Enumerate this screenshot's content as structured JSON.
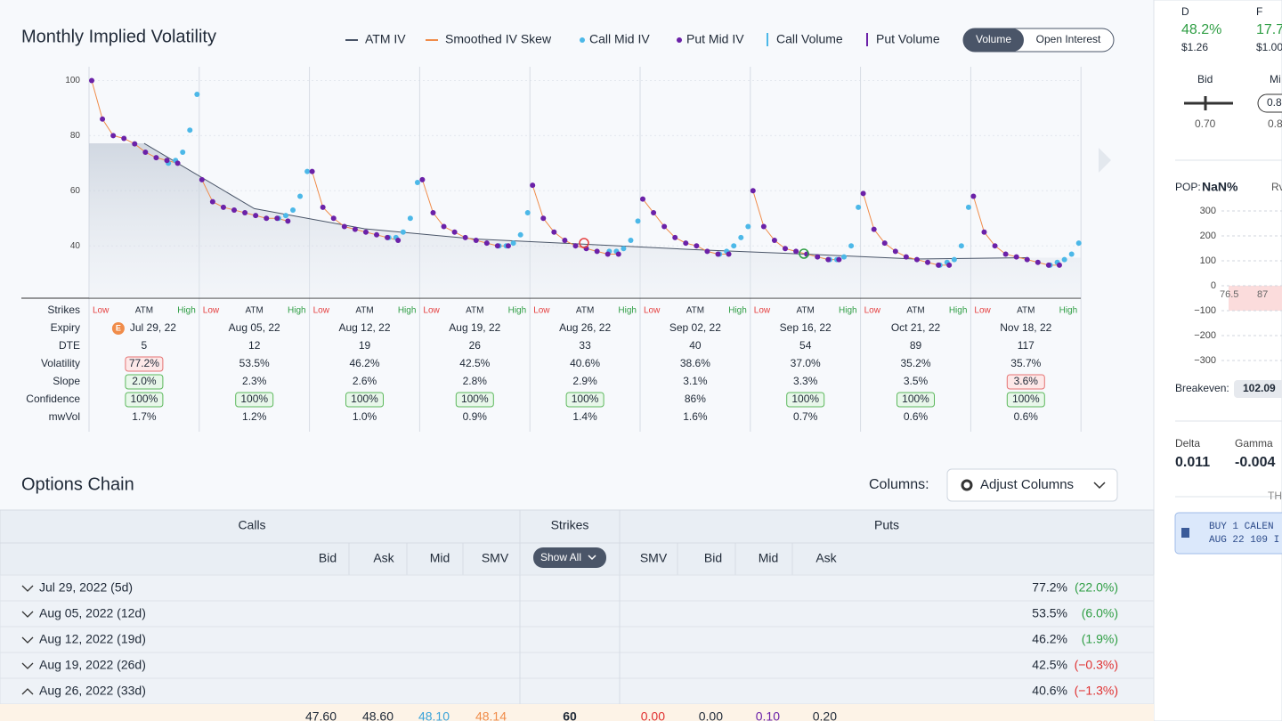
{
  "header": {
    "title": "Monthly Implied Volatility",
    "toggle": [
      "Volume",
      "Open Interest"
    ]
  },
  "chart_data": {
    "type": "scatter",
    "ylim": [
      21,
      105
    ],
    "yticks": [
      40,
      60,
      80,
      100
    ],
    "series": [
      {
        "name": "ATM IV",
        "color": "#4a5568",
        "values": [
          77.2,
          53.5,
          46.2,
          42.5,
          40.6,
          38.6,
          37.0,
          35.2,
          35.7
        ]
      },
      {
        "name": "Smoothed IV Skew",
        "color": "#f08c4a"
      },
      {
        "name": "Call Mid IV",
        "color": "#4cb8e8",
        "values": [
          [
            70,
            71,
            74,
            82,
            95
          ],
          [
            50,
            51,
            53,
            58,
            67
          ],
          [
            43,
            43,
            45,
            50,
            63
          ],
          [
            40,
            40,
            41,
            44,
            52
          ],
          [
            38,
            38,
            39,
            42,
            49
          ],
          [
            37,
            38,
            40,
            43,
            47
          ],
          [
            35,
            35,
            36,
            40,
            54
          ],
          [
            33,
            34,
            35,
            40,
            54
          ],
          [
            33,
            34,
            35,
            37,
            41
          ]
        ]
      },
      {
        "name": "Put Mid IV",
        "color": "#6b21a8",
        "values": [
          [
            100,
            86,
            80,
            79,
            77,
            74,
            72,
            71,
            70
          ],
          [
            64,
            56,
            54,
            53,
            52,
            51,
            50,
            50,
            49
          ],
          [
            67,
            54,
            50,
            47,
            46,
            45,
            44,
            43,
            42
          ],
          [
            64,
            52,
            47,
            45,
            43,
            42,
            41,
            40,
            40
          ],
          [
            62,
            50,
            45,
            42,
            40,
            39,
            38,
            37,
            37
          ],
          [
            57,
            52,
            47,
            43,
            41,
            40,
            38,
            37,
            37
          ],
          [
            60,
            47,
            42,
            39,
            38,
            37,
            36,
            35,
            35
          ],
          [
            59,
            46,
            41,
            38,
            36,
            35,
            34,
            33,
            33
          ],
          [
            58,
            45,
            40,
            37,
            36,
            35,
            34,
            33,
            33
          ]
        ]
      },
      {
        "name": "Call Volume",
        "color": "#4cb8e8"
      },
      {
        "name": "Put Volume",
        "color": "#6b21a8"
      }
    ]
  },
  "grid": {
    "row_labels": [
      "Strikes",
      "Expiry",
      "DTE",
      "Volatility",
      "Slope",
      "Confidence",
      "mwVol"
    ],
    "strike_labels": [
      "Low",
      "ATM",
      "High"
    ],
    "columns": [
      {
        "badge": "E",
        "expiry": "Jul 29, 22",
        "dte": "5",
        "volatility": "77.2%",
        "slope": "2.0%",
        "confidence": "100%",
        "mwvol": "1.7%",
        "boxes": {
          "volatility": "red",
          "slope": "green",
          "confidence": "green"
        }
      },
      {
        "expiry": "Aug 05, 22",
        "dte": "12",
        "volatility": "53.5%",
        "slope": "2.3%",
        "confidence": "100%",
        "mwvol": "1.2%",
        "boxes": {
          "confidence": "green"
        }
      },
      {
        "expiry": "Aug 12, 22",
        "dte": "19",
        "volatility": "46.2%",
        "slope": "2.6%",
        "confidence": "100%",
        "mwvol": "1.0%",
        "boxes": {
          "confidence": "green"
        }
      },
      {
        "expiry": "Aug 19, 22",
        "dte": "26",
        "volatility": "42.5%",
        "slope": "2.8%",
        "confidence": "100%",
        "mwvol": "0.9%",
        "boxes": {
          "confidence": "green"
        }
      },
      {
        "expiry": "Aug 26, 22",
        "dte": "33",
        "volatility": "40.6%",
        "slope": "2.9%",
        "confidence": "100%",
        "mwvol": "1.4%",
        "boxes": {
          "confidence": "green"
        }
      },
      {
        "expiry": "Sep 02, 22",
        "dte": "40",
        "volatility": "38.6%",
        "slope": "3.1%",
        "confidence": "86%",
        "mwvol": "1.6%",
        "boxes": {}
      },
      {
        "expiry": "Sep 16, 22",
        "dte": "54",
        "volatility": "37.0%",
        "slope": "3.3%",
        "confidence": "100%",
        "mwvol": "0.7%",
        "boxes": {
          "confidence": "green"
        }
      },
      {
        "expiry": "Oct 21, 22",
        "dte": "89",
        "volatility": "35.2%",
        "slope": "3.5%",
        "confidence": "100%",
        "mwvol": "0.6%",
        "boxes": {
          "confidence": "green"
        }
      },
      {
        "expiry": "Nov 18, 22",
        "dte": "117",
        "volatility": "35.7%",
        "slope": "3.6%",
        "confidence": "100%",
        "mwvol": "0.6%",
        "boxes": {
          "slope": "red",
          "confidence": "green"
        }
      }
    ]
  },
  "chain": {
    "title": "Options Chain",
    "columns_label": "Columns:",
    "adjust": "Adjust Columns",
    "groups": [
      "Calls",
      "Strikes",
      "Puts"
    ],
    "call_headers": [
      "Bid",
      "Ask",
      "Mid",
      "SMV"
    ],
    "show_all": "Show All",
    "put_headers": [
      "SMV",
      "Bid",
      "Mid",
      "Ask"
    ],
    "rows": [
      {
        "expiry": "Jul 29, 2022 (5d)",
        "iv": "77.2%",
        "change": "(22.0%)"
      },
      {
        "expiry": "Aug 05, 2022 (12d)",
        "iv": "53.5%",
        "change": "(6.0%)"
      },
      {
        "expiry": "Aug 12, 2022 (19d)",
        "iv": "46.2%",
        "change": "(1.9%)"
      },
      {
        "expiry": "Aug 19, 2022 (26d)",
        "iv": "42.5%",
        "change": "(−0.3%)"
      },
      {
        "expiry": "Aug 26, 2022 (33d)",
        "iv": "40.6%",
        "change": "(−1.3%)",
        "expanded": true
      }
    ],
    "open_row": {
      "calls": [
        "47.60",
        "48.60",
        "48.10",
        "48.14"
      ],
      "strike": "60",
      "puts": [
        "0.00",
        "0.00",
        "0.10",
        "0.20"
      ]
    }
  },
  "side": {
    "d_label": "D",
    "d_value": "48.2%",
    "d_price": "$1.26",
    "f_label": "F",
    "f_value": "17.7",
    "f_price": "$1.00",
    "bid": "Bid",
    "mid": "Mi",
    "mid_pill": "0.8",
    "bid_value": "0.70",
    "mid_value": "0.8",
    "pop_label": "POP:",
    "pop_value": "NaN%",
    "rv": "Rv",
    "pl_ticks": [
      "300",
      "200",
      "100",
      "0",
      "−100",
      "−200",
      "−300"
    ],
    "strike_a": "76.5",
    "strike_b": "87",
    "breakeven_label": "Breakeven:",
    "breakeven": "102.09",
    "delta_label": "Delta",
    "delta": "0.011",
    "gamma_label": "Gamma",
    "gamma": "-0.004",
    "th": "TH",
    "order_1": "BUY 1 CALEN",
    "order_2": "AUG 22 109 I"
  }
}
